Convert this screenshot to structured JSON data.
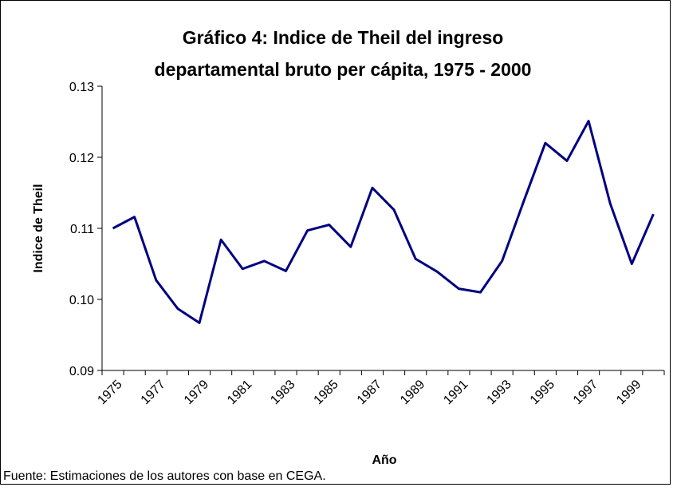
{
  "chart_data": {
    "type": "line",
    "title": [
      "Gráfico 4: Indice de Theil del ingreso",
      "departamental bruto per cápita, 1975 - 2000"
    ],
    "x_label": "Año",
    "y_label": "Indice de Theil",
    "source": "Fuente: Estimaciones de los autores con base en CEGA.",
    "categories": [
      "1975",
      null,
      "1977",
      null,
      "1979",
      null,
      "1981",
      null,
      "1983",
      null,
      "1985",
      null,
      "1987",
      null,
      "1989",
      null,
      "1991",
      null,
      "1993",
      null,
      "1995",
      null,
      "1997",
      null,
      "1999",
      null
    ],
    "series": [
      {
        "name": "Indice de Theil",
        "color": "#000080",
        "values": [
          0.11,
          0.1116,
          0.1027,
          0.0987,
          0.0967,
          0.1084,
          0.1043,
          0.1054,
          0.104,
          0.1097,
          0.1105,
          0.1074,
          0.1157,
          0.1126,
          0.1057,
          0.1039,
          0.1015,
          0.101,
          0.1054,
          0.1138,
          0.122,
          0.1195,
          0.1251,
          0.1135,
          0.105,
          0.112
        ]
      }
    ],
    "ylim": [
      0.09,
      0.13
    ],
    "yticks": [
      0.09,
      {
        "value": 0.1,
        "label": "0.10"
      },
      0.11,
      0.12,
      0.13
    ]
  }
}
